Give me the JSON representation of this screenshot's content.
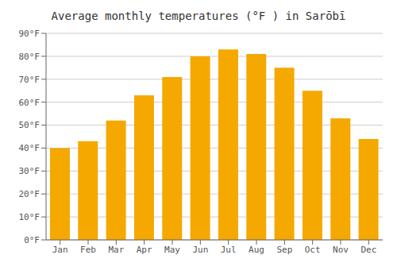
{
  "chart_data": {
    "type": "bar",
    "title": "Average monthly temperatures (°F ) in Sarōbī",
    "categories": [
      "Jan",
      "Feb",
      "Mar",
      "Apr",
      "May",
      "Jun",
      "Jul",
      "Aug",
      "Sep",
      "Oct",
      "Nov",
      "Dec"
    ],
    "values": [
      40,
      43,
      52,
      63,
      71,
      80,
      83,
      81,
      75,
      65,
      53,
      44
    ],
    "color": "#F5A800",
    "ylim": [
      0,
      90
    ],
    "yticks": [
      {
        "value": 0,
        "label": "0°F"
      },
      {
        "value": 10,
        "label": "10°F"
      },
      {
        "value": 20,
        "label": "20°F"
      },
      {
        "value": 30,
        "label": "30°F"
      },
      {
        "value": 40,
        "label": "40°F"
      },
      {
        "value": 50,
        "label": "50°F"
      },
      {
        "value": 60,
        "label": "60°F"
      },
      {
        "value": 70,
        "label": "70°F"
      },
      {
        "value": 80,
        "label": "80°F"
      },
      {
        "value": 90,
        "label": "90°F"
      }
    ],
    "grid": true
  }
}
